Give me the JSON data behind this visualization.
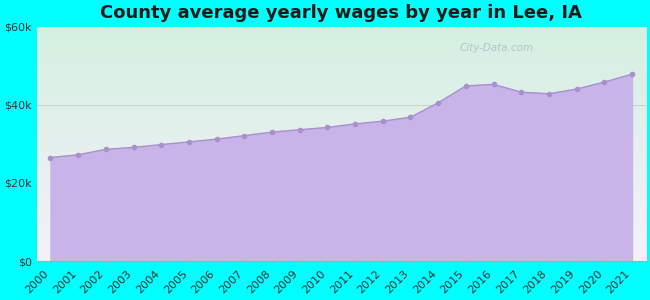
{
  "title": "County average yearly wages by year in Lee, IA",
  "years": [
    2000,
    2001,
    2002,
    2003,
    2004,
    2005,
    2006,
    2007,
    2008,
    2009,
    2010,
    2011,
    2012,
    2013,
    2014,
    2015,
    2016,
    2017,
    2018,
    2019,
    2020,
    2021
  ],
  "wages": [
    26500,
    27200,
    28600,
    29100,
    29800,
    30500,
    31200,
    32100,
    33000,
    33600,
    34200,
    35100,
    35800,
    36800,
    40500,
    44800,
    45200,
    43200,
    42800,
    44000,
    45800,
    47800
  ],
  "yticks": [
    0,
    20000,
    40000,
    60000
  ],
  "ytick_labels": [
    "$0",
    "$20k",
    "$40k",
    "$60k"
  ],
  "fill_color": "#c8b4e8",
  "line_color": "#a890cc",
  "marker_color": "#a890cc",
  "bg_color": "#00ffff",
  "grad_top": "#d4f0e0",
  "grad_bottom": "#f5f0fc",
  "watermark": "City-Data.com",
  "title_fontsize": 13,
  "tick_fontsize": 8
}
